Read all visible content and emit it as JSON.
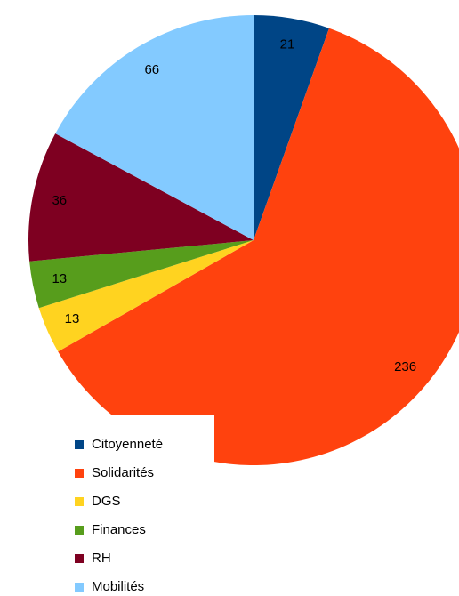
{
  "chart_data": {
    "type": "pie",
    "categories": [
      "Citoyenneté",
      "Solidarités",
      "DGS",
      "Finances",
      "RH",
      "Mobilités"
    ],
    "values": [
      21,
      236,
      13,
      13,
      36,
      66
    ],
    "colors": [
      "#004586",
      "#ff420e",
      "#ffd320",
      "#579d1c",
      "#7e0021",
      "#83caff"
    ],
    "start": "top",
    "direction": "clockwise",
    "legend": "bottom-left"
  }
}
